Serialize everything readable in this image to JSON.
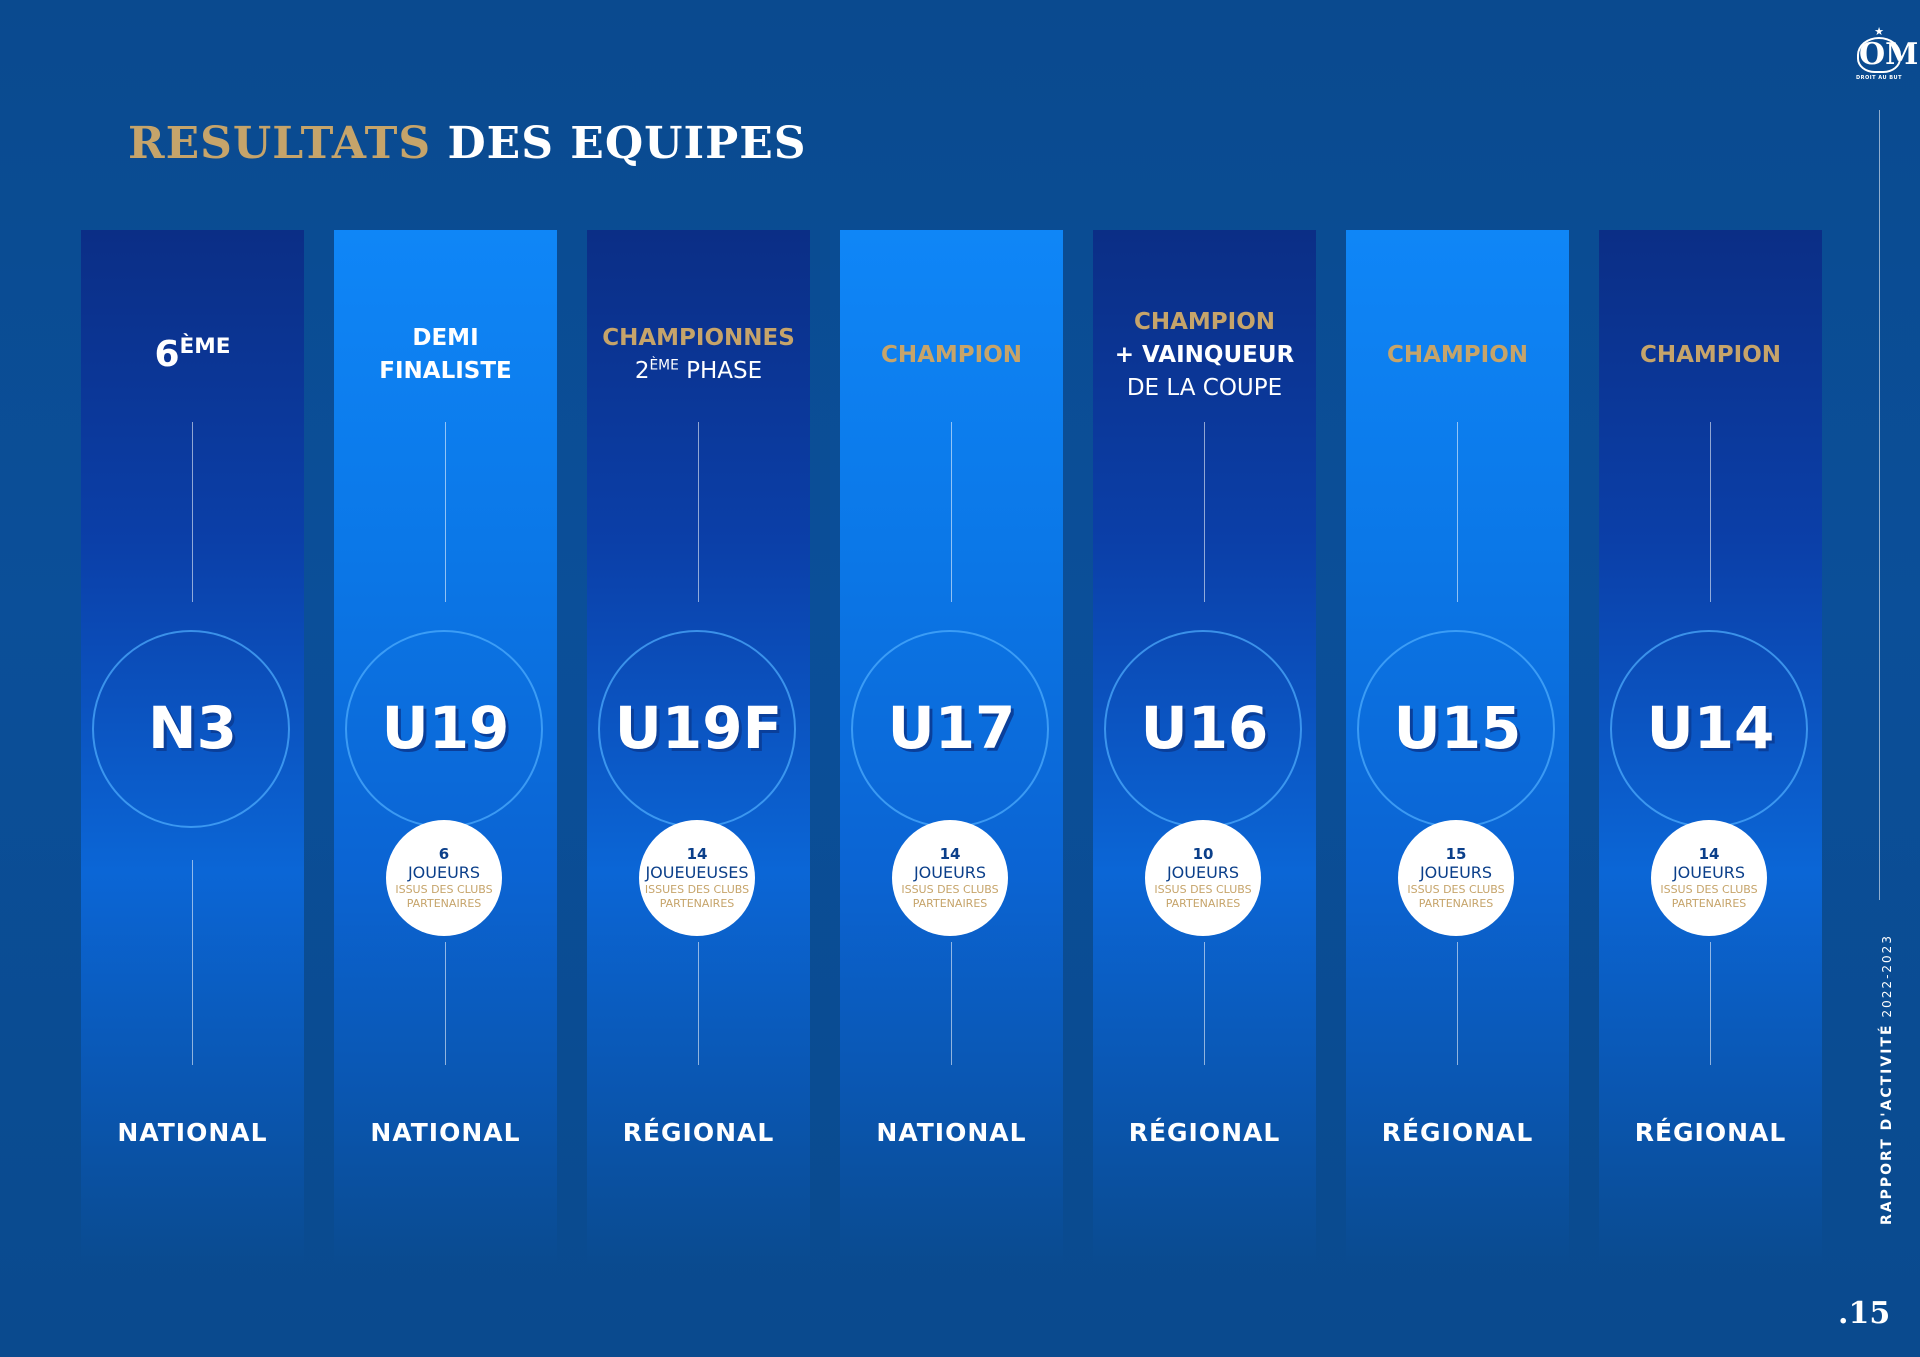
{
  "title": {
    "part1": "RESULTATS",
    "part2": "DES EQUIPES"
  },
  "logo": {
    "mark": "OM",
    "star": "★",
    "motto": "DROIT AU BUT"
  },
  "side": {
    "label": "RAPPORT D'ACTIVITÉ",
    "years": "2022-2023"
  },
  "page_number": ".15",
  "colors": {
    "gold": "#c6a46a",
    "navy": "#0b2e86",
    "bright_blue": "#0f86f7",
    "white": "#ffffff"
  },
  "teams": [
    {
      "code": "N3",
      "result": {
        "main": "6",
        "sup": "ÈME"
      },
      "players": null,
      "level": "NATIONAL"
    },
    {
      "code": "U19",
      "result": {
        "line1": "DEMI",
        "line2": "FINALISTE"
      },
      "players": {
        "count": "6",
        "label": "JOUEURS",
        "note1": "ISSUS DES CLUBS",
        "note2": "PARTENAIRES"
      },
      "level": "NATIONAL"
    },
    {
      "code": "U19F",
      "result": {
        "line1": "CHAMPIONNES",
        "pre": "2",
        "sup": "ÈME",
        "post": " PHASE"
      },
      "players": {
        "count": "14",
        "label": "JOUEUEUSES",
        "note1": "ISSUES DES CLUBS",
        "note2": "PARTENAIRES"
      },
      "level": "RÉGIONAL"
    },
    {
      "code": "U17",
      "result": {
        "line1": "CHAMPION"
      },
      "players": {
        "count": "14",
        "label": "JOUEURS",
        "note1": "ISSUS DES CLUBS",
        "note2": "PARTENAIRES"
      },
      "level": "NATIONAL"
    },
    {
      "code": "U16",
      "result": {
        "line1": "CHAMPION",
        "line2": "+ VAINQUEUR",
        "line3": "DE LA COUPE"
      },
      "players": {
        "count": "10",
        "label": "JOUEURS",
        "note1": "ISSUS DES CLUBS",
        "note2": "PARTENAIRES"
      },
      "level": "RÉGIONAL"
    },
    {
      "code": "U15",
      "result": {
        "line1": "CHAMPION"
      },
      "players": {
        "count": "15",
        "label": "JOUEURS",
        "note1": "ISSUS DES CLUBS",
        "note2": "PARTENAIRES"
      },
      "level": "RÉGIONAL"
    },
    {
      "code": "U14",
      "result": {
        "line1": "CHAMPION"
      },
      "players": {
        "count": "14",
        "label": "JOUEURS",
        "note1": "ISSUS DES CLUBS",
        "note2": "PARTENAIRES"
      },
      "level": "RÉGIONAL"
    }
  ]
}
